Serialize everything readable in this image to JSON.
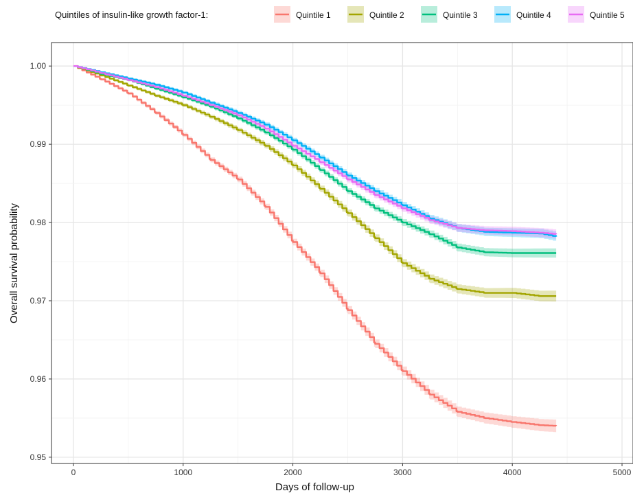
{
  "chart_data": {
    "type": "line",
    "xlabel": "Days of follow-up",
    "ylabel": "Overall survival probability",
    "xlim": [
      -200,
      5100
    ],
    "ylim": [
      0.9492,
      1.003
    ],
    "xticks": [
      0,
      1000,
      2000,
      3000,
      4000,
      5000
    ],
    "xtick_labels": [
      "0",
      "1000",
      "2000",
      "3000",
      "4000",
      "5000"
    ],
    "yticks": [
      0.95,
      0.96,
      0.97,
      0.98,
      0.99,
      1.0
    ],
    "ytick_labels": [
      "0.95",
      "0.96",
      "0.97",
      "0.98",
      "0.99",
      "1.00"
    ],
    "grid": true,
    "legend": {
      "title": "Quintiles of insulin-like growth factor-1:",
      "position": "top"
    },
    "series": [
      {
        "name": "Quintile 1",
        "color": "#F8766D",
        "x": [
          0,
          250,
          500,
          750,
          1000,
          1250,
          1500,
          1750,
          2000,
          2250,
          2500,
          2750,
          3000,
          3250,
          3500,
          3750,
          4000,
          4250,
          4400
        ],
        "y": [
          1.0,
          0.9983,
          0.9965,
          0.994,
          0.9912,
          0.988,
          0.9855,
          0.982,
          0.9775,
          0.9735,
          0.9688,
          0.9645,
          0.961,
          0.958,
          0.9558,
          0.955,
          0.9545,
          0.9541,
          0.954
        ],
        "band": 0.0008
      },
      {
        "name": "Quintile 2",
        "color": "#A3A500",
        "x": [
          0,
          250,
          500,
          750,
          1000,
          1250,
          1500,
          1750,
          2000,
          2250,
          2500,
          2750,
          3000,
          3250,
          3500,
          3750,
          4000,
          4250,
          4400
        ],
        "y": [
          1.0,
          0.9988,
          0.9975,
          0.9962,
          0.995,
          0.9935,
          0.9918,
          0.9898,
          0.9873,
          0.9843,
          0.9812,
          0.978,
          0.9748,
          0.9728,
          0.9715,
          0.971,
          0.971,
          0.9706,
          0.9706
        ],
        "band": 0.0007
      },
      {
        "name": "Quintile 3",
        "color": "#00BF7D",
        "x": [
          0,
          250,
          500,
          750,
          1000,
          1250,
          1500,
          1750,
          2000,
          2250,
          2500,
          2750,
          3000,
          3250,
          3500,
          3750,
          4000,
          4250,
          4400
        ],
        "y": [
          1.0,
          0.999,
          0.9982,
          0.9971,
          0.996,
          0.9948,
          0.9933,
          0.9915,
          0.9893,
          0.9867,
          0.984,
          0.9818,
          0.98,
          0.9785,
          0.9768,
          0.9762,
          0.9761,
          0.9761,
          0.9761
        ],
        "band": 0.0006
      },
      {
        "name": "Quintile 4",
        "color": "#00B0F6",
        "x": [
          0,
          250,
          500,
          750,
          1000,
          1250,
          1500,
          1750,
          2000,
          2250,
          2500,
          2750,
          3000,
          3250,
          3500,
          3750,
          4000,
          4250,
          4400
        ],
        "y": [
          1.0,
          0.9992,
          0.9984,
          0.9976,
          0.9966,
          0.9953,
          0.994,
          0.9925,
          0.9905,
          0.9883,
          0.986,
          0.984,
          0.9822,
          0.9805,
          0.9793,
          0.9788,
          0.9787,
          0.9786,
          0.9782
        ],
        "band": 0.0006
      },
      {
        "name": "Quintile 5",
        "color": "#E76BF3",
        "x": [
          0,
          250,
          500,
          750,
          1000,
          1250,
          1500,
          1750,
          2000,
          2250,
          2500,
          2750,
          3000,
          3250,
          3500,
          3750,
          4000,
          4250,
          4400
        ],
        "y": [
          1.0,
          0.9991,
          0.9982,
          0.9973,
          0.9962,
          0.995,
          0.9937,
          0.992,
          0.9898,
          0.9877,
          0.9855,
          0.9835,
          0.9818,
          0.9803,
          0.9793,
          0.979,
          0.9789,
          0.9787,
          0.9785
        ],
        "band": 0.0006
      }
    ]
  }
}
